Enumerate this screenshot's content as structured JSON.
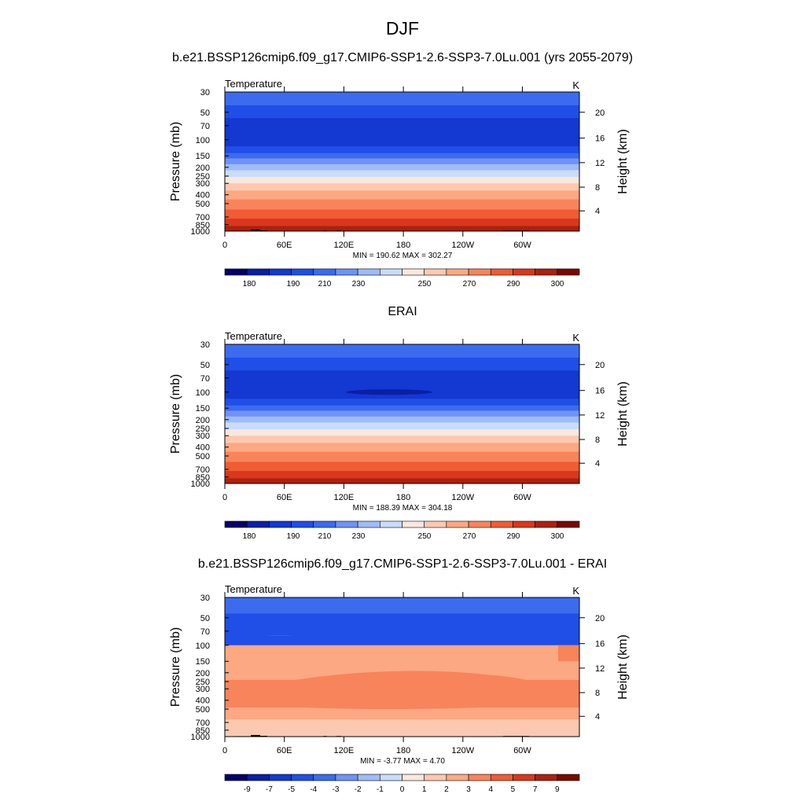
{
  "figure": {
    "title": "DJF"
  },
  "panels": [
    {
      "title": "b.e21.BSSP126cmip6.f09_g17.CMIP6-SSP1-2.6-SSP3-7.0Lu.001 (yrs 2055-2079)",
      "variable": "Temperature",
      "units": "K",
      "ylabel": "Pressure (mb)",
      "y2label": "Height (km)",
      "stats": "MIN = 190.62  MAX = 302.27",
      "colorbar_labels": [
        "180",
        "190",
        "210",
        "230",
        "250",
        "270",
        "290",
        "300"
      ]
    },
    {
      "title": "ERAI",
      "variable": "Temperature",
      "units": "K",
      "ylabel": "Pressure (mb)",
      "y2label": "Height (km)",
      "stats": "MIN = 188.39  MAX = 304.18",
      "colorbar_labels": [
        "180",
        "190",
        "210",
        "230",
        "250",
        "270",
        "290",
        "300"
      ]
    },
    {
      "title": "b.e21.BSSP126cmip6.f09_g17.CMIP6-SSP1-2.6-SSP3-7.0Lu.001 - ERAI",
      "variable": "Temperature",
      "units": "K",
      "ylabel": "Pressure (mb)",
      "y2label": "Height (km)",
      "stats": "MIN =  -3.77  MAX =   4.70",
      "colorbar_labels": [
        "-9",
        "-7",
        "-5",
        "-4",
        "-3",
        "-2",
        "-1",
        "0",
        "1",
        "2",
        "3",
        "4",
        "5",
        "7",
        "9"
      ]
    }
  ],
  "chart_data": [
    {
      "type": "heatmap",
      "title": "b.e21.BSSP126cmip6.f09_g17.CMIP6-SSP1-2.6-SSP3-7.0Lu.001 (yrs 2055-2079)",
      "xlabel": "",
      "ylabel": "Pressure (mb)",
      "y2label": "Height (km)",
      "x_tick_labels": [
        "0",
        "60E",
        "120E",
        "180",
        "120W",
        "60W"
      ],
      "y_tick_labels": [
        "30",
        "50",
        "70",
        "100",
        "150",
        "200",
        "250",
        "300",
        "400",
        "500",
        "700",
        "850",
        "1000"
      ],
      "y2_tick_labels": [
        "20",
        "16",
        "12",
        "8",
        "4"
      ],
      "ylim": [
        1000,
        30
      ],
      "y_scale": "log",
      "levels": [
        "180",
        "190",
        "210",
        "230",
        "250",
        "270",
        "290",
        "300"
      ],
      "min": 190.62,
      "max": 302.27,
      "colors": [
        "#03006b",
        "#0a1fa5",
        "#1438d2",
        "#1f4fe6",
        "#3c6bf0",
        "#6f93f5",
        "#9fbbf8",
        "#c9dcfb",
        "#f8e8de",
        "#fcc9b0",
        "#fca883",
        "#f8845b",
        "#f05c34",
        "#d9381c",
        "#ad200f",
        "#7a0800"
      ]
    },
    {
      "type": "heatmap",
      "title": "ERAI",
      "xlabel": "",
      "ylabel": "Pressure (mb)",
      "y2label": "Height (km)",
      "x_tick_labels": [
        "0",
        "60E",
        "120E",
        "180",
        "120W",
        "60W"
      ],
      "y_tick_labels": [
        "30",
        "50",
        "70",
        "100",
        "150",
        "200",
        "250",
        "300",
        "400",
        "500",
        "700",
        "850",
        "1000"
      ],
      "y2_tick_labels": [
        "20",
        "16",
        "12",
        "8",
        "4"
      ],
      "ylim": [
        1000,
        30
      ],
      "y_scale": "log",
      "levels": [
        "180",
        "190",
        "210",
        "230",
        "250",
        "270",
        "290",
        "300"
      ],
      "min": 188.39,
      "max": 304.18,
      "colors": [
        "#03006b",
        "#0a1fa5",
        "#1438d2",
        "#1f4fe6",
        "#3c6bf0",
        "#6f93f5",
        "#9fbbf8",
        "#c9dcfb",
        "#f8e8de",
        "#fcc9b0",
        "#fca883",
        "#f8845b",
        "#f05c34",
        "#d9381c",
        "#ad200f",
        "#7a0800"
      ]
    },
    {
      "type": "heatmap",
      "title": "b.e21.BSSP126cmip6.f09_g17.CMIP6-SSP1-2.6-SSP3-7.0Lu.001 - ERAI",
      "xlabel": "",
      "ylabel": "Pressure (mb)",
      "y2label": "Height (km)",
      "x_tick_labels": [
        "0",
        "60E",
        "120E",
        "180",
        "120W",
        "60W"
      ],
      "y_tick_labels": [
        "30",
        "50",
        "70",
        "100",
        "150",
        "200",
        "250",
        "300",
        "400",
        "500",
        "700",
        "850",
        "1000"
      ],
      "y2_tick_labels": [
        "20",
        "16",
        "12",
        "8",
        "4"
      ],
      "ylim": [
        1000,
        30
      ],
      "y_scale": "log",
      "levels": [
        "-9",
        "-7",
        "-5",
        "-4",
        "-3",
        "-2",
        "-1",
        "0",
        "1",
        "2",
        "3",
        "4",
        "5",
        "7",
        "9"
      ],
      "min": -3.77,
      "max": 4.7,
      "colors": [
        "#03006b",
        "#0a1fa5",
        "#1438d2",
        "#1f4fe6",
        "#3c6bf0",
        "#6f93f5",
        "#9fbbf8",
        "#c9dcfb",
        "#f8e8de",
        "#fcc9b0",
        "#fca883",
        "#f8845b",
        "#f05c34",
        "#d9381c",
        "#ad200f",
        "#7a0800"
      ]
    }
  ]
}
